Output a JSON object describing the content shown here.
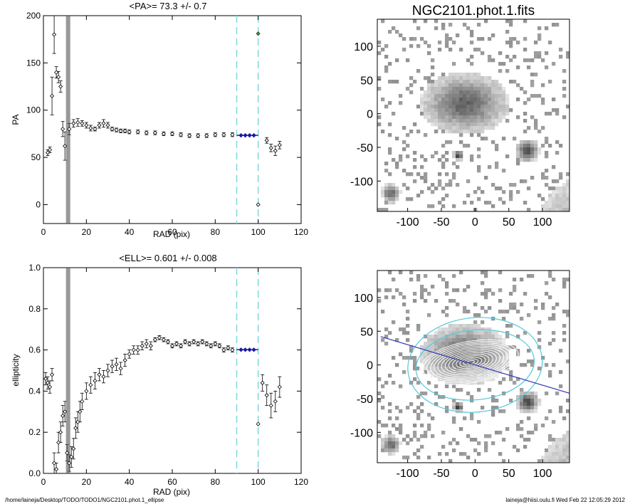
{
  "footer": {
    "left": "/home/laineja/Desktop/TODO/TODO1/NGC2101.phot.1_ellipse",
    "right": "laineja@hiisi.oulu.fi  Wed Feb 22 12:05:29 2012"
  },
  "chart_data": [
    {
      "type": "scatter",
      "title": "<PA>=  73.3 +/-   0.7",
      "xlabel": "RAD (pix)",
      "ylabel": "PA",
      "xlim": [
        0,
        120
      ],
      "ylim": [
        -20,
        200
      ],
      "xticks": [
        "0",
        "20",
        "40",
        "60",
        "80",
        "100",
        "120"
      ],
      "yticks": [
        "0",
        "50",
        "100",
        "150",
        "200"
      ],
      "vlines": [
        90,
        100
      ],
      "fit_line": {
        "x": [
          90,
          100
        ],
        "y": [
          73.3,
          73.3
        ]
      },
      "x": [
        2,
        3,
        4,
        5,
        6,
        7,
        8,
        9,
        10,
        12,
        14,
        16,
        18,
        20,
        22,
        24,
        26,
        28,
        30,
        32,
        34,
        36,
        38,
        40,
        44,
        48,
        52,
        56,
        60,
        64,
        68,
        72,
        76,
        80,
        84,
        88,
        100,
        104,
        106,
        108,
        110
      ],
      "y": [
        55,
        58,
        115,
        180,
        140,
        135,
        125,
        80,
        62,
        80,
        86,
        87,
        86,
        84,
        81,
        80,
        84,
        86,
        84,
        80,
        79,
        78,
        78,
        77,
        77,
        76,
        76,
        75,
        75,
        74,
        73,
        73,
        73,
        74,
        74,
        74,
        0,
        68,
        60,
        57,
        63
      ],
      "yerr": [
        3,
        3,
        20,
        20,
        6,
        6,
        6,
        8,
        15,
        6,
        4,
        4,
        3,
        3,
        3,
        2,
        3,
        4,
        3,
        2,
        2,
        2,
        2,
        2,
        2,
        2,
        2,
        2,
        2,
        2,
        2,
        2,
        2,
        2,
        2,
        2,
        0,
        3,
        4,
        5,
        4
      ],
      "fit_points": {
        "x": [
          92,
          94,
          96,
          98
        ],
        "y": [
          73.3,
          73.3,
          73.3,
          73.3
        ]
      },
      "marker_points": {
        "x": [
          100
        ],
        "y": [
          181
        ]
      }
    },
    {
      "type": "scatter",
      "title": "<ELL>= 0.601 +/-  0.008",
      "xlabel": "RAD (pix)",
      "ylabel": "ellipticity",
      "xlim": [
        0,
        120
      ],
      "ylim": [
        0,
        1
      ],
      "xticks": [
        "0",
        "20",
        "40",
        "60",
        "80",
        "100",
        "120"
      ],
      "yticks": [
        "0.0",
        "0.2",
        "0.4",
        "0.6",
        "0.8",
        "1.0"
      ],
      "vlines": [
        90,
        100
      ],
      "fit_line": {
        "x": [
          90,
          100
        ],
        "y": [
          0.601,
          0.601
        ]
      },
      "x": [
        1,
        2,
        3,
        4,
        5,
        6,
        7,
        8,
        9,
        10,
        11,
        12,
        13,
        14,
        15,
        16,
        17,
        18,
        20,
        22,
        24,
        26,
        28,
        30,
        32,
        34,
        36,
        38,
        40,
        42,
        44,
        46,
        48,
        50,
        52,
        54,
        56,
        58,
        60,
        62,
        64,
        66,
        68,
        70,
        72,
        74,
        76,
        78,
        80,
        82,
        84,
        86,
        88,
        100,
        102,
        104,
        106,
        108,
        110
      ],
      "y": [
        0.46,
        0.44,
        0.42,
        0.48,
        0.05,
        0.02,
        0.15,
        0.2,
        0.28,
        0.3,
        0.1,
        0.05,
        0.08,
        0.12,
        0.22,
        0.25,
        0.3,
        0.35,
        0.4,
        0.43,
        0.45,
        0.48,
        0.47,
        0.5,
        0.52,
        0.53,
        0.51,
        0.55,
        0.58,
        0.6,
        0.6,
        0.62,
        0.63,
        0.62,
        0.65,
        0.66,
        0.65,
        0.64,
        0.62,
        0.63,
        0.62,
        0.64,
        0.63,
        0.64,
        0.63,
        0.64,
        0.63,
        0.62,
        0.63,
        0.62,
        0.6,
        0.61,
        0.6,
        0.24,
        0.44,
        0.38,
        0.33,
        0.35,
        0.42
      ],
      "yerr": [
        0.03,
        0.03,
        0.03,
        0.03,
        0.05,
        0.03,
        0.05,
        0.05,
        0.05,
        0.05,
        0.04,
        0.04,
        0.05,
        0.05,
        0.05,
        0.05,
        0.05,
        0.04,
        0.04,
        0.04,
        0.04,
        0.03,
        0.03,
        0.03,
        0.03,
        0.03,
        0.03,
        0.03,
        0.02,
        0.02,
        0.02,
        0.02,
        0.02,
        0.02,
        0.01,
        0.01,
        0.01,
        0.01,
        0.01,
        0.01,
        0.01,
        0.01,
        0.01,
        0.01,
        0.01,
        0.01,
        0.01,
        0.01,
        0.01,
        0.01,
        0.01,
        0.01,
        0.01,
        0,
        0.04,
        0.05,
        0.06,
        0.05,
        0.05
      ],
      "fit_points": {
        "x": [
          92,
          94,
          96,
          98
        ],
        "y": [
          0.601,
          0.601,
          0.601,
          0.601
        ]
      }
    },
    {
      "type": "heatmap",
      "title": "NGC2101.phot.1.fits",
      "xlim": [
        -145,
        140
      ],
      "ylim": [
        -145,
        140
      ],
      "xticks": [
        "-100",
        "-50",
        "0",
        "50",
        "100"
      ],
      "yticks": [
        "-100",
        "-50",
        "0",
        "50",
        "100"
      ],
      "sources": [
        {
          "x": -15,
          "y": 15,
          "rx": 55,
          "ry": 38,
          "strength": 0.7
        },
        {
          "x": 78,
          "y": -55,
          "rx": 14,
          "ry": 14,
          "strength": 0.85
        },
        {
          "x": -25,
          "y": -62,
          "rx": 6,
          "ry": 6,
          "strength": 1.0
        },
        {
          "x": -125,
          "y": -118,
          "rx": 12,
          "ry": 12,
          "strength": 0.7
        }
      ]
    },
    {
      "type": "heatmap",
      "xlim": [
        -145,
        140
      ],
      "ylim": [
        -145,
        140
      ],
      "xticks": [
        "-100",
        "-50",
        "0",
        "50",
        "100"
      ],
      "yticks": [
        "-100",
        "-50",
        "0",
        "50",
        "100"
      ],
      "ellipses_pa_deg": 73.3,
      "cyan_ellipses": [
        {
          "a": 100,
          "b": 70,
          "x": 0,
          "y": 0
        }
      ],
      "pa_line": {
        "x1": -140,
        "y1": 42,
        "x2": 140,
        "y2": -42
      }
    }
  ],
  "colors": {
    "vline": "#7fd8e0",
    "fit": "#1a1aa0",
    "marker": "#2aa84a",
    "cyan_ellipse": "#56c7d8",
    "pa_line": "#3535b8"
  }
}
